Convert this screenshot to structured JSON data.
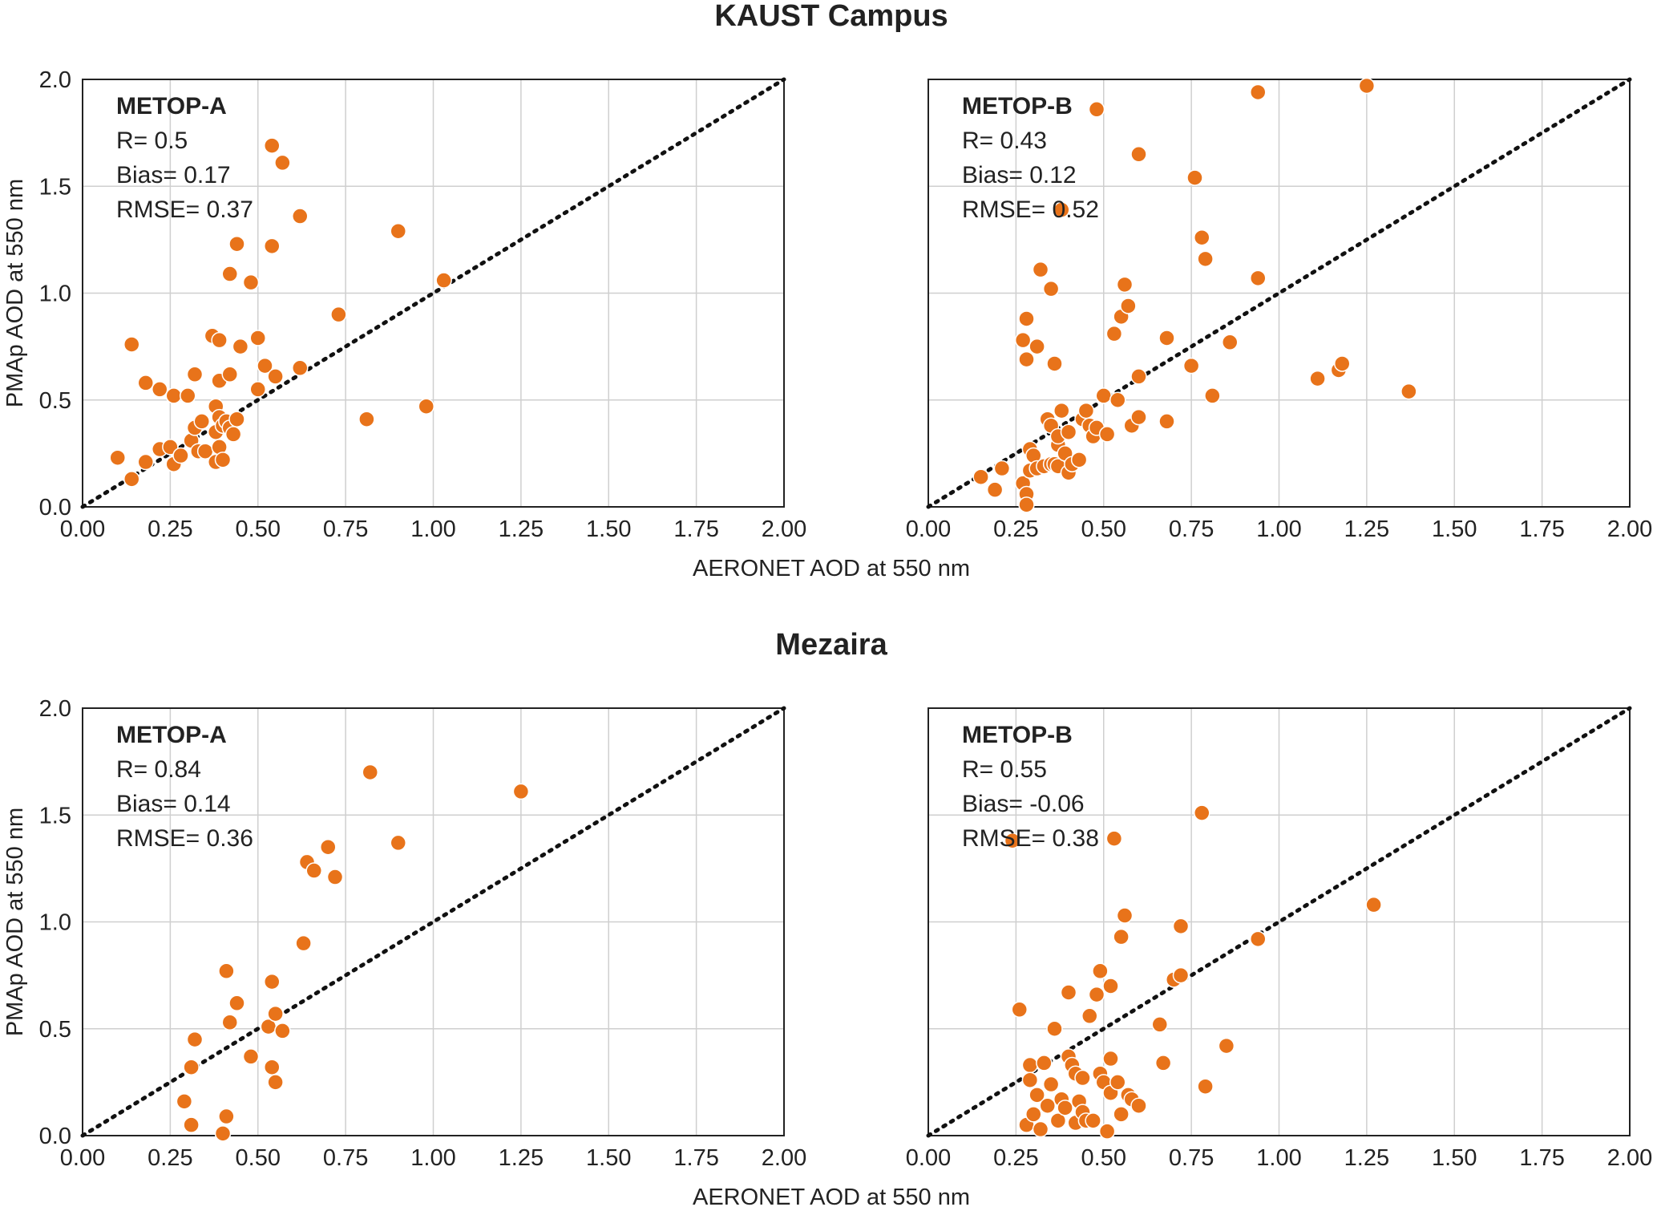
{
  "figure": {
    "sections": [
      {
        "title": "KAUST Campus"
      },
      {
        "title": "Mezaira"
      }
    ],
    "marker_color": "#E8731A",
    "line_color": "#111111"
  },
  "chart_data": [
    {
      "type": "scatter",
      "section": "KAUST Campus",
      "panel_title": "METOP-A",
      "stats": [
        "R= 0.5",
        "Bias= 0.17",
        "RMSE= 0.37"
      ],
      "xlabel": "",
      "ylabel": "PMAp AOD at 550 nm",
      "xlim": [
        0,
        2
      ],
      "ylim": [
        0,
        2
      ],
      "x_ticks": [
        "0.00",
        "0.25",
        "0.50",
        "0.75",
        "1.00",
        "1.25",
        "1.50",
        "1.75",
        "2.00"
      ],
      "y_ticks": [
        "0.0",
        "0.5",
        "1.0",
        "1.5",
        "2.0"
      ],
      "grid": true,
      "reference_line": "1:1 dotted",
      "points": [
        [
          0.1,
          0.23
        ],
        [
          0.14,
          0.76
        ],
        [
          0.14,
          0.13
        ],
        [
          0.18,
          0.58
        ],
        [
          0.18,
          0.21
        ],
        [
          0.22,
          0.55
        ],
        [
          0.22,
          0.27
        ],
        [
          0.26,
          0.52
        ],
        [
          0.25,
          0.28
        ],
        [
          0.26,
          0.2
        ],
        [
          0.28,
          0.24
        ],
        [
          0.3,
          0.52
        ],
        [
          0.31,
          0.31
        ],
        [
          0.32,
          0.62
        ],
        [
          0.32,
          0.37
        ],
        [
          0.33,
          0.26
        ],
        [
          0.34,
          0.4
        ],
        [
          0.35,
          0.26
        ],
        [
          0.37,
          0.8
        ],
        [
          0.38,
          0.47
        ],
        [
          0.38,
          0.35
        ],
        [
          0.38,
          0.21
        ],
        [
          0.39,
          0.78
        ],
        [
          0.39,
          0.59
        ],
        [
          0.39,
          0.42
        ],
        [
          0.39,
          0.28
        ],
        [
          0.4,
          0.38
        ],
        [
          0.4,
          0.22
        ],
        [
          0.41,
          0.4
        ],
        [
          0.42,
          1.09
        ],
        [
          0.42,
          0.62
        ],
        [
          0.42,
          0.37
        ],
        [
          0.43,
          0.34
        ],
        [
          0.44,
          0.41
        ],
        [
          0.44,
          1.23
        ],
        [
          0.45,
          0.75
        ],
        [
          0.48,
          1.05
        ],
        [
          0.5,
          0.79
        ],
        [
          0.5,
          0.55
        ],
        [
          0.52,
          0.66
        ],
        [
          0.54,
          1.69
        ],
        [
          0.54,
          1.22
        ],
        [
          0.55,
          0.61
        ],
        [
          0.57,
          1.61
        ],
        [
          0.62,
          0.65
        ],
        [
          0.62,
          1.36
        ],
        [
          0.73,
          0.9
        ],
        [
          0.81,
          0.41
        ],
        [
          0.9,
          1.29
        ],
        [
          0.98,
          0.47
        ],
        [
          1.03,
          1.06
        ]
      ]
    },
    {
      "type": "scatter",
      "section": "KAUST Campus",
      "panel_title": "METOP-B",
      "stats": [
        "R= 0.43",
        "Bias= 0.12",
        "RMSE= 0.52"
      ],
      "xlabel": "AERONET AOD at 550 nm",
      "ylabel": "",
      "xlim": [
        0,
        2
      ],
      "ylim": [
        0,
        2
      ],
      "x_ticks": [
        "0.00",
        "0.25",
        "0.50",
        "0.75",
        "1.00",
        "1.25",
        "1.50",
        "1.75",
        "2.00"
      ],
      "y_ticks": [
        "0.0",
        "0.5",
        "1.0",
        "1.5",
        "2.0"
      ],
      "grid": true,
      "reference_line": "1:1 dotted",
      "points": [
        [
          0.15,
          0.14
        ],
        [
          0.19,
          0.08
        ],
        [
          0.21,
          0.18
        ],
        [
          0.27,
          0.11
        ],
        [
          0.27,
          0.78
        ],
        [
          0.28,
          0.88
        ],
        [
          0.28,
          0.69
        ],
        [
          0.28,
          0.06
        ],
        [
          0.28,
          0.01
        ],
        [
          0.29,
          0.27
        ],
        [
          0.29,
          0.17
        ],
        [
          0.3,
          0.24
        ],
        [
          0.31,
          0.18
        ],
        [
          0.31,
          0.75
        ],
        [
          0.32,
          1.11
        ],
        [
          0.33,
          0.19
        ],
        [
          0.34,
          0.41
        ],
        [
          0.35,
          0.38
        ],
        [
          0.35,
          0.2
        ],
        [
          0.35,
          1.02
        ],
        [
          0.36,
          0.2
        ],
        [
          0.36,
          0.67
        ],
        [
          0.37,
          0.29
        ],
        [
          0.37,
          0.19
        ],
        [
          0.37,
          0.33
        ],
        [
          0.38,
          0.45
        ],
        [
          0.38,
          1.39
        ],
        [
          0.39,
          0.25
        ],
        [
          0.4,
          0.16
        ],
        [
          0.4,
          0.35
        ],
        [
          0.41,
          0.2
        ],
        [
          0.43,
          0.22
        ],
        [
          0.44,
          0.41
        ],
        [
          0.45,
          0.45
        ],
        [
          0.46,
          0.38
        ],
        [
          0.47,
          0.33
        ],
        [
          0.48,
          1.86
        ],
        [
          0.48,
          0.37
        ],
        [
          0.5,
          0.52
        ],
        [
          0.51,
          0.34
        ],
        [
          0.53,
          0.81
        ],
        [
          0.54,
          0.5
        ],
        [
          0.55,
          0.89
        ],
        [
          0.56,
          1.04
        ],
        [
          0.57,
          0.94
        ],
        [
          0.58,
          0.38
        ],
        [
          0.6,
          0.42
        ],
        [
          0.6,
          0.61
        ],
        [
          0.6,
          1.65
        ],
        [
          0.68,
          0.4
        ],
        [
          0.68,
          0.79
        ],
        [
          0.75,
          0.66
        ],
        [
          0.76,
          1.54
        ],
        [
          0.78,
          1.26
        ],
        [
          0.79,
          1.16
        ],
        [
          0.81,
          0.52
        ],
        [
          0.86,
          0.77
        ],
        [
          0.94,
          1.94
        ],
        [
          0.94,
          1.07
        ],
        [
          1.11,
          0.6
        ],
        [
          1.17,
          0.64
        ],
        [
          1.18,
          0.67
        ],
        [
          1.25,
          1.97
        ],
        [
          1.37,
          0.54
        ]
      ]
    },
    {
      "type": "scatter",
      "section": "Mezaira",
      "panel_title": "METOP-A",
      "stats": [
        "R= 0.84",
        "Bias= 0.14",
        "RMSE= 0.36"
      ],
      "xlabel": "",
      "ylabel": "PMAp AOD at 550 nm",
      "xlim": [
        0,
        2
      ],
      "ylim": [
        0,
        2
      ],
      "x_ticks": [
        "0.00",
        "0.25",
        "0.50",
        "0.75",
        "1.00",
        "1.25",
        "1.50",
        "1.75",
        "2.00"
      ],
      "y_ticks": [
        "0.0",
        "0.5",
        "1.0",
        "1.5",
        "2.0"
      ],
      "grid": true,
      "reference_line": "1:1 dotted",
      "points": [
        [
          0.29,
          0.16
        ],
        [
          0.31,
          0.05
        ],
        [
          0.31,
          0.32
        ],
        [
          0.32,
          0.45
        ],
        [
          0.4,
          0.01
        ],
        [
          0.41,
          0.09
        ],
        [
          0.41,
          0.77
        ],
        [
          0.42,
          0.53
        ],
        [
          0.44,
          0.62
        ],
        [
          0.48,
          0.37
        ],
        [
          0.53,
          0.51
        ],
        [
          0.54,
          0.72
        ],
        [
          0.54,
          0.32
        ],
        [
          0.55,
          0.57
        ],
        [
          0.55,
          0.25
        ],
        [
          0.57,
          0.49
        ],
        [
          0.63,
          0.9
        ],
        [
          0.64,
          1.28
        ],
        [
          0.66,
          1.24
        ],
        [
          0.7,
          1.35
        ],
        [
          0.72,
          1.21
        ],
        [
          0.82,
          1.7
        ],
        [
          0.9,
          1.37
        ],
        [
          1.25,
          1.61
        ]
      ]
    },
    {
      "type": "scatter",
      "section": "Mezaira",
      "panel_title": "METOP-B",
      "stats": [
        "R= 0.55",
        "Bias= -0.06",
        "RMSE= 0.38"
      ],
      "xlabel": "AERONET AOD at 550 nm",
      "ylabel": "",
      "xlim": [
        0,
        2
      ],
      "ylim": [
        0,
        2
      ],
      "x_ticks": [
        "0.00",
        "0.25",
        "0.50",
        "0.75",
        "1.00",
        "1.25",
        "1.50",
        "1.75",
        "2.00"
      ],
      "y_ticks": [
        "0.0",
        "0.5",
        "1.0",
        "1.5",
        "2.0"
      ],
      "grid": true,
      "reference_line": "1:1 dotted",
      "points": [
        [
          0.24,
          1.38
        ],
        [
          0.26,
          0.59
        ],
        [
          0.28,
          0.05
        ],
        [
          0.29,
          0.33
        ],
        [
          0.29,
          0.26
        ],
        [
          0.3,
          0.1
        ],
        [
          0.31,
          0.19
        ],
        [
          0.32,
          0.03
        ],
        [
          0.33,
          0.34
        ],
        [
          0.34,
          0.14
        ],
        [
          0.35,
          0.24
        ],
        [
          0.36,
          0.5
        ],
        [
          0.37,
          0.07
        ],
        [
          0.38,
          0.17
        ],
        [
          0.39,
          0.13
        ],
        [
          0.4,
          0.67
        ],
        [
          0.4,
          0.37
        ],
        [
          0.41,
          0.33
        ],
        [
          0.42,
          0.29
        ],
        [
          0.42,
          0.06
        ],
        [
          0.43,
          0.16
        ],
        [
          0.44,
          0.27
        ],
        [
          0.44,
          0.11
        ],
        [
          0.45,
          0.07
        ],
        [
          0.46,
          0.56
        ],
        [
          0.47,
          0.07
        ],
        [
          0.48,
          0.66
        ],
        [
          0.49,
          0.77
        ],
        [
          0.49,
          0.29
        ],
        [
          0.5,
          0.25
        ],
        [
          0.51,
          0.02
        ],
        [
          0.52,
          0.36
        ],
        [
          0.52,
          0.2
        ],
        [
          0.52,
          0.7
        ],
        [
          0.53,
          1.39
        ],
        [
          0.54,
          0.25
        ],
        [
          0.55,
          0.1
        ],
        [
          0.55,
          0.93
        ],
        [
          0.56,
          1.03
        ],
        [
          0.57,
          0.19
        ],
        [
          0.58,
          0.17
        ],
        [
          0.6,
          0.14
        ],
        [
          0.66,
          0.52
        ],
        [
          0.67,
          0.34
        ],
        [
          0.7,
          0.73
        ],
        [
          0.72,
          0.75
        ],
        [
          0.72,
          0.98
        ],
        [
          0.78,
          1.51
        ],
        [
          0.79,
          0.23
        ],
        [
          0.85,
          0.42
        ],
        [
          0.94,
          0.92
        ],
        [
          1.27,
          1.08
        ]
      ]
    }
  ]
}
